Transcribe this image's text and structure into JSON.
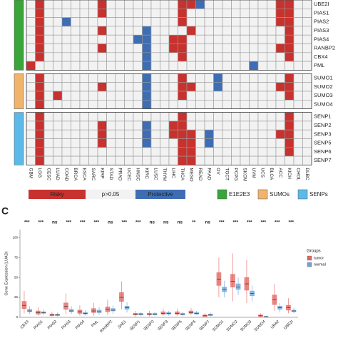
{
  "chart_data": [
    {
      "type": "heatmap",
      "columns": [
        "GBM",
        "LGG",
        "CESC",
        "LUAD",
        "COAD",
        "BRCA",
        "ESCA",
        "SARC",
        "KIRP",
        "STAD",
        "PRAD",
        "UCEC",
        "HNSC",
        "KIRC",
        "LUSC",
        "THYM",
        "LIHC",
        "THCA",
        "MESO",
        "READ",
        "PAAD",
        "OV",
        "TGCT",
        "PCPG",
        "SKCM",
        "UVM",
        "UCS",
        "BLCA",
        "ACC",
        "KICH",
        "CHOL",
        "DLBC"
      ],
      "levels": [
        {
          "value": 1,
          "label": "Risky",
          "color": "#c8322e"
        },
        {
          "value": 0,
          "label": "p>0.05",
          "color": "#f2f2f2"
        },
        {
          "value": -1,
          "label": "Protective",
          "color": "#3f6db3"
        }
      ],
      "groups": [
        {
          "name": "E1E2E3",
          "color": "#3aa53a",
          "rows": [
            {
              "label": "UBE2I",
              "values": [
                0,
                1,
                0,
                0,
                0,
                0,
                0,
                0,
                1,
                0,
                0,
                0,
                0,
                0,
                0,
                0,
                0,
                1,
                1,
                -1,
                0,
                0,
                0,
                0,
                0,
                0,
                0,
                0,
                1,
                1,
                0,
                0
              ]
            },
            {
              "label": "PIAS1",
              "values": [
                0,
                1,
                0,
                0,
                0,
                0,
                0,
                0,
                1,
                0,
                0,
                0,
                0,
                0,
                0,
                0,
                0,
                1,
                0,
                0,
                0,
                0,
                0,
                0,
                0,
                0,
                0,
                0,
                1,
                1,
                0,
                0
              ]
            },
            {
              "label": "PIAS2",
              "values": [
                0,
                1,
                0,
                0,
                -1,
                0,
                0,
                0,
                0,
                0,
                0,
                0,
                0,
                0,
                0,
                0,
                0,
                1,
                0,
                0,
                0,
                0,
                0,
                0,
                0,
                0,
                0,
                0,
                1,
                1,
                0,
                0
              ]
            },
            {
              "label": "PIAS3",
              "values": [
                0,
                1,
                0,
                0,
                0,
                0,
                0,
                0,
                1,
                0,
                0,
                0,
                0,
                -1,
                0,
                0,
                0,
                0,
                1,
                0,
                0,
                0,
                0,
                0,
                0,
                0,
                0,
                0,
                0,
                1,
                0,
                0
              ]
            },
            {
              "label": "PIAS4",
              "values": [
                0,
                1,
                0,
                0,
                0,
                0,
                0,
                0,
                0,
                0,
                0,
                0,
                -1,
                -1,
                0,
                0,
                1,
                1,
                0,
                0,
                0,
                0,
                0,
                0,
                0,
                0,
                0,
                0,
                0,
                1,
                0,
                0
              ]
            },
            {
              "label": "RANBP2",
              "values": [
                0,
                1,
                0,
                0,
                0,
                0,
                0,
                0,
                1,
                0,
                0,
                0,
                0,
                -1,
                0,
                0,
                1,
                1,
                0,
                0,
                0,
                0,
                0,
                0,
                0,
                0,
                0,
                0,
                1,
                1,
                0,
                0
              ]
            },
            {
              "label": "CBX4",
              "values": [
                0,
                1,
                0,
                0,
                0,
                0,
                0,
                0,
                0,
                0,
                0,
                0,
                0,
                -1,
                0,
                0,
                0,
                1,
                0,
                0,
                0,
                0,
                0,
                0,
                0,
                0,
                0,
                0,
                0,
                1,
                0,
                0
              ]
            },
            {
              "label": "PML",
              "values": [
                1,
                0,
                0,
                0,
                0,
                0,
                0,
                0,
                0,
                0,
                0,
                0,
                0,
                -1,
                0,
                0,
                0,
                0,
                0,
                0,
                0,
                0,
                0,
                0,
                0,
                -1,
                0,
                0,
                0,
                0,
                0,
                0
              ]
            }
          ]
        },
        {
          "name": "SUMOs",
          "color": "#f0b46c",
          "rows": [
            {
              "label": "SUMO1",
              "values": [
                0,
                1,
                0,
                0,
                0,
                0,
                0,
                0,
                0,
                0,
                0,
                0,
                0,
                -1,
                0,
                0,
                0,
                1,
                0,
                0,
                0,
                -1,
                0,
                0,
                0,
                0,
                0,
                0,
                0,
                1,
                0,
                0
              ]
            },
            {
              "label": "SUMO2",
              "values": [
                0,
                1,
                0,
                0,
                0,
                0,
                0,
                0,
                1,
                0,
                0,
                0,
                0,
                -1,
                0,
                0,
                0,
                1,
                1,
                0,
                0,
                -1,
                0,
                0,
                0,
                0,
                0,
                0,
                1,
                1,
                0,
                0
              ]
            },
            {
              "label": "SUMO3",
              "values": [
                0,
                1,
                0,
                1,
                0,
                0,
                0,
                0,
                0,
                0,
                0,
                0,
                0,
                -1,
                0,
                0,
                0,
                1,
                0,
                0,
                0,
                0,
                0,
                0,
                0,
                0,
                0,
                0,
                0,
                1,
                0,
                0
              ]
            },
            {
              "label": "SUMO4",
              "values": [
                0,
                1,
                0,
                0,
                0,
                0,
                0,
                0,
                0,
                0,
                0,
                0,
                0,
                -1,
                0,
                0,
                0,
                0,
                0,
                0,
                0,
                0,
                0,
                0,
                0,
                0,
                0,
                0,
                0,
                0,
                0,
                0
              ]
            }
          ]
        },
        {
          "name": "SENPs",
          "color": "#5bbae8",
          "rows": [
            {
              "label": "SENP1",
              "values": [
                0,
                1,
                0,
                0,
                0,
                0,
                0,
                0,
                0,
                0,
                0,
                0,
                0,
                0,
                0,
                0,
                0,
                1,
                0,
                0,
                0,
                0,
                0,
                0,
                0,
                0,
                0,
                0,
                0,
                1,
                0,
                0
              ]
            },
            {
              "label": "SENP2",
              "values": [
                0,
                1,
                0,
                0,
                0,
                0,
                0,
                0,
                1,
                0,
                0,
                0,
                0,
                -1,
                0,
                0,
                1,
                1,
                0,
                0,
                0,
                0,
                0,
                0,
                0,
                0,
                0,
                0,
                0,
                1,
                0,
                0
              ]
            },
            {
              "label": "SENP3",
              "values": [
                0,
                1,
                0,
                0,
                0,
                0,
                0,
                0,
                1,
                0,
                0,
                0,
                0,
                -1,
                0,
                0,
                1,
                1,
                1,
                0,
                -1,
                0,
                0,
                0,
                0,
                0,
                0,
                0,
                1,
                1,
                0,
                0
              ]
            },
            {
              "label": "SENP5",
              "values": [
                0,
                1,
                0,
                0,
                0,
                0,
                0,
                0,
                1,
                0,
                0,
                0,
                0,
                -1,
                0,
                0,
                0,
                1,
                1,
                0,
                -1,
                0,
                0,
                0,
                0,
                0,
                0,
                0,
                0,
                1,
                0,
                0
              ]
            },
            {
              "label": "SENP6",
              "values": [
                0,
                1,
                0,
                0,
                0,
                0,
                0,
                0,
                0,
                0,
                0,
                0,
                0,
                0,
                0,
                0,
                0,
                1,
                1,
                0,
                0,
                0,
                0,
                0,
                0,
                0,
                0,
                0,
                0,
                1,
                0,
                0
              ]
            },
            {
              "label": "SENP7",
              "values": [
                0,
                1,
                0,
                0,
                0,
                0,
                0,
                0,
                0,
                0,
                0,
                0,
                0,
                0,
                0,
                0,
                0,
                1,
                1,
                0,
                0,
                0,
                0,
                0,
                0,
                0,
                0,
                0,
                0,
                0,
                0,
                0
              ]
            }
          ]
        }
      ]
    },
    {
      "type": "box",
      "panel_label": "C",
      "ylabel": "Gene Expression (LUAD)",
      "legend_title": "Groups",
      "categories": [
        "CBX4",
        "PIAS1",
        "PIAS2",
        "PIAS3",
        "PIAS4",
        "PML",
        "RANBP2",
        "SAE1",
        "SENP1",
        "SENP2",
        "SENP3",
        "SENP5",
        "SENP6",
        "SENP7",
        "SUMO1",
        "SUMO2",
        "SUMO3",
        "SUMO4",
        "UBA2",
        "UBE2I"
      ],
      "significance": [
        "***",
        "***",
        "ns",
        "***",
        "***",
        "***",
        "ns",
        "***",
        "***",
        "ns",
        "ns",
        "ns",
        "**",
        "ns",
        "***",
        "***",
        "***",
        "***",
        "***",
        "***"
      ],
      "ylim": [
        0,
        110
      ],
      "yticks": [
        0,
        25,
        50,
        75,
        100
      ],
      "series": [
        {
          "name": "tumor",
          "color": "#e2645f",
          "lower": [
            5,
            2,
            1,
            4,
            2,
            2,
            3,
            10,
            1,
            1,
            2,
            2,
            3,
            1,
            25,
            20,
            18,
            0,
            8,
            5
          ],
          "q1": [
            11,
            4,
            2,
            10,
            5,
            6,
            7,
            20,
            3,
            3,
            4,
            4,
            5,
            1,
            40,
            38,
            34,
            1,
            16,
            9
          ],
          "median": [
            15,
            6,
            3,
            14,
            7,
            8,
            10,
            25,
            4,
            4,
            5,
            5,
            6,
            2,
            48,
            45,
            42,
            2,
            22,
            12
          ],
          "q3": [
            20,
            8,
            4,
            18,
            9,
            11,
            13,
            31,
            5,
            5,
            7,
            7,
            8,
            3,
            56,
            54,
            50,
            3,
            28,
            15
          ],
          "upper": [
            33,
            13,
            7,
            30,
            15,
            18,
            22,
            45,
            8,
            8,
            11,
            11,
            12,
            5,
            75,
            80,
            72,
            5,
            42,
            24
          ]
        },
        {
          "name": "normal",
          "color": "#6fa3d6",
          "lower": [
            4,
            3,
            1,
            4,
            2,
            3,
            4,
            6,
            2,
            2,
            2,
            2,
            3,
            1,
            25,
            28,
            20,
            0,
            6,
            5
          ],
          "q1": [
            7,
            5,
            2,
            7,
            4,
            6,
            8,
            10,
            3,
            3,
            4,
            3,
            4,
            2,
            32,
            35,
            27,
            0,
            10,
            7
          ],
          "median": [
            8,
            6,
            3,
            8,
            5,
            7,
            9,
            12,
            4,
            4,
            5,
            4,
            5,
            3,
            35,
            38,
            30,
            1,
            12,
            8
          ],
          "q3": [
            10,
            7,
            4,
            10,
            6,
            9,
            11,
            14,
            5,
            5,
            6,
            5,
            6,
            4,
            38,
            42,
            33,
            1,
            14,
            9
          ],
          "upper": [
            14,
            10,
            6,
            14,
            9,
            13,
            15,
            19,
            7,
            7,
            8,
            7,
            8,
            6,
            46,
            50,
            40,
            2,
            18,
            12
          ]
        }
      ]
    }
  ]
}
